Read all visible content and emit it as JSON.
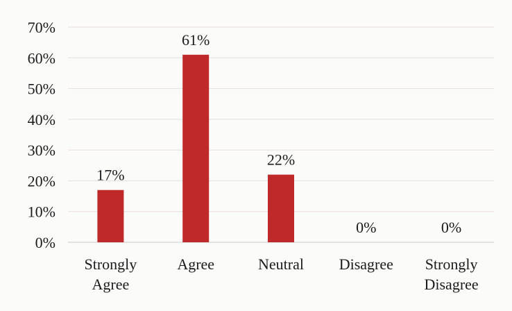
{
  "chart_data": {
    "type": "bar",
    "categories": [
      [
        "Strongly",
        "Agree"
      ],
      [
        "Agree"
      ],
      [
        "Neutral"
      ],
      [
        "Disagree"
      ],
      [
        "Strongly",
        "Disagree"
      ]
    ],
    "values": [
      17,
      61,
      22,
      0,
      0
    ],
    "data_labels": [
      "17%",
      "61%",
      "22%",
      "0%",
      "0%"
    ],
    "y_ticks": [
      "0%",
      "10%",
      "20%",
      "30%",
      "40%",
      "50%",
      "60%",
      "70%"
    ],
    "ylim": [
      0,
      70
    ],
    "grid": true,
    "bar_color": "#c0292a"
  }
}
